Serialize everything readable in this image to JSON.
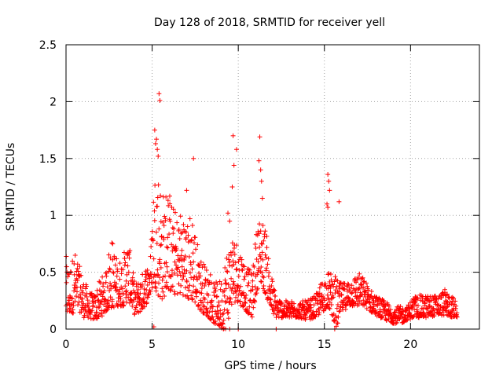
{
  "chart_data": {
    "type": "scatter",
    "title": "Day 128 of 2018, SRMTID for receiver yell",
    "xlabel": "GPS time / hours",
    "ylabel": "SRMTID / TECUs",
    "xlim": [
      0,
      24
    ],
    "ylim": [
      0,
      2.5
    ],
    "x_ticks": [
      0,
      5,
      10,
      15,
      20
    ],
    "x_tick_labels": [
      "0",
      "5",
      "10",
      "15",
      "20"
    ],
    "y_ticks": [
      0,
      0.5,
      1,
      1.5,
      2,
      2.5
    ],
    "y_tick_labels": [
      "0",
      "0.5",
      "1",
      "1.5",
      "2",
      "2.5"
    ],
    "grid": true,
    "marker": "+",
    "series": [
      {
        "name": "SRMTID",
        "color": "#ff0000",
        "envelope": [
          [
            0.0,
            0.1,
            0.65
          ],
          [
            0.2,
            0.12,
            0.55
          ],
          [
            0.5,
            0.15,
            0.7
          ],
          [
            0.8,
            0.15,
            0.55
          ],
          [
            1.0,
            0.1,
            0.45
          ],
          [
            1.3,
            0.1,
            0.35
          ],
          [
            1.6,
            0.08,
            0.3
          ],
          [
            2.0,
            0.1,
            0.45
          ],
          [
            2.3,
            0.15,
            0.5
          ],
          [
            2.6,
            0.18,
            0.85
          ],
          [
            3.0,
            0.2,
            0.6
          ],
          [
            3.3,
            0.2,
            0.65
          ],
          [
            3.6,
            0.25,
            0.8
          ],
          [
            3.8,
            0.2,
            0.6
          ],
          [
            4.0,
            0.12,
            0.4
          ],
          [
            4.3,
            0.15,
            0.45
          ],
          [
            4.6,
            0.2,
            0.55
          ],
          [
            4.9,
            0.3,
            0.65
          ],
          [
            5.1,
            0.4,
            1.4
          ],
          [
            5.3,
            0.3,
            1.5
          ],
          [
            5.6,
            0.25,
            1.2
          ],
          [
            5.9,
            0.35,
            1.3
          ],
          [
            6.2,
            0.3,
            1.1
          ],
          [
            6.5,
            0.3,
            1.0
          ],
          [
            6.8,
            0.3,
            1.1
          ],
          [
            7.0,
            0.25,
            0.9
          ],
          [
            7.3,
            0.25,
            1.1
          ],
          [
            7.6,
            0.2,
            0.8
          ],
          [
            7.9,
            0.15,
            0.6
          ],
          [
            8.3,
            0.1,
            0.55
          ],
          [
            8.6,
            0.05,
            0.4
          ],
          [
            9.0,
            0.0,
            0.45
          ],
          [
            9.3,
            0.0,
            0.7
          ],
          [
            9.6,
            0.2,
            0.85
          ],
          [
            9.9,
            0.25,
            0.8
          ],
          [
            10.2,
            0.2,
            0.7
          ],
          [
            10.5,
            0.15,
            0.55
          ],
          [
            10.8,
            0.1,
            0.5
          ],
          [
            11.1,
            0.35,
            0.95
          ],
          [
            11.3,
            0.4,
            1.0
          ],
          [
            11.6,
            0.3,
            0.9
          ],
          [
            11.9,
            0.15,
            0.5
          ],
          [
            12.2,
            0.1,
            0.3
          ],
          [
            12.6,
            0.1,
            0.25
          ],
          [
            13.0,
            0.1,
            0.25
          ],
          [
            13.5,
            0.1,
            0.25
          ],
          [
            14.0,
            0.08,
            0.25
          ],
          [
            14.5,
            0.1,
            0.3
          ],
          [
            14.9,
            0.15,
            0.45
          ],
          [
            15.2,
            0.2,
            0.5
          ],
          [
            15.5,
            0.1,
            0.5
          ],
          [
            15.7,
            0.0,
            0.45
          ],
          [
            16.0,
            0.15,
            0.4
          ],
          [
            16.5,
            0.2,
            0.45
          ],
          [
            17.0,
            0.2,
            0.5
          ],
          [
            17.3,
            0.2,
            0.45
          ],
          [
            17.7,
            0.15,
            0.35
          ],
          [
            18.0,
            0.12,
            0.3
          ],
          [
            18.5,
            0.08,
            0.25
          ],
          [
            19.0,
            0.05,
            0.2
          ],
          [
            19.5,
            0.05,
            0.2
          ],
          [
            19.8,
            0.08,
            0.2
          ],
          [
            20.2,
            0.1,
            0.3
          ],
          [
            20.5,
            0.1,
            0.3
          ],
          [
            21.0,
            0.1,
            0.3
          ],
          [
            21.5,
            0.12,
            0.3
          ],
          [
            22.0,
            0.12,
            0.35
          ],
          [
            22.5,
            0.1,
            0.28
          ],
          [
            22.7,
            0.1,
            0.22
          ]
        ],
        "outliers": [
          [
            5.4,
            2.07
          ],
          [
            5.45,
            2.01
          ],
          [
            5.15,
            1.75
          ],
          [
            5.2,
            1.63
          ],
          [
            5.3,
            1.58
          ],
          [
            5.35,
            1.52
          ],
          [
            5.25,
            1.67
          ],
          [
            7.4,
            1.5
          ],
          [
            9.7,
            1.7
          ],
          [
            9.75,
            1.44
          ],
          [
            9.9,
            1.58
          ],
          [
            9.65,
            1.25
          ],
          [
            11.25,
            1.69
          ],
          [
            11.2,
            1.48
          ],
          [
            11.3,
            1.4
          ],
          [
            11.35,
            1.3
          ],
          [
            11.4,
            1.15
          ],
          [
            15.2,
            1.36
          ],
          [
            15.25,
            1.3
          ],
          [
            15.3,
            1.22
          ],
          [
            15.15,
            1.1
          ],
          [
            15.2,
            1.07
          ],
          [
            15.85,
            1.12
          ],
          [
            9.4,
            1.02
          ],
          [
            9.5,
            0.95
          ],
          [
            7.0,
            1.22
          ],
          [
            5.1,
            0.02
          ],
          [
            9.5,
            0.0
          ],
          [
            10.0,
            0.0
          ],
          [
            12.2,
            0.0
          ],
          [
            15.6,
            0.0
          ]
        ]
      }
    ]
  }
}
